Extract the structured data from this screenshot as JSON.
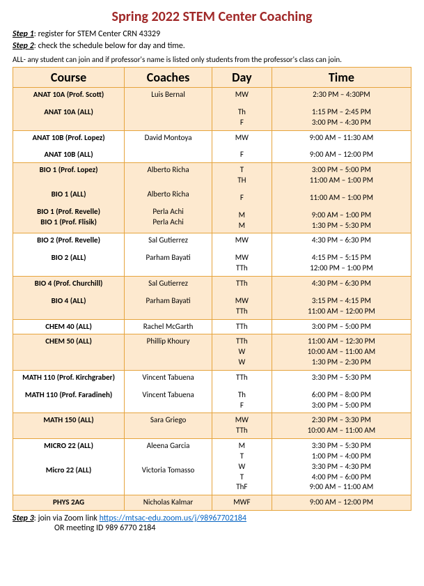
{
  "title": "Spring 2022 STEM Center Coaching",
  "steps": {
    "s1_label": "Step 1",
    "s1_text": ": register for STEM Center CRN 43329",
    "s2_label": "Step 2",
    "s2_text": ": check the schedule below for day and time.",
    "note": "ALL- any student can join and if professor's name is listed  only  students from the professor's class can join.",
    "s3_label": "Step 3",
    "s3_text_pre": ": join via Zoom link  ",
    "s3_link": "https://mtsac-edu.zoom.us/j/98967702184",
    "s3_or": "OR meeting ID 989 6770 2184"
  },
  "headers": {
    "course": "Course",
    "coaches": "Coaches",
    "day": "Day",
    "time": "Time"
  },
  "rows": [
    {
      "band": "a",
      "course": [
        "ANAT 10A (Prof. Scott)",
        "",
        "ANAT 10A  (ALL)"
      ],
      "coach": [
        "Luis Bernal"
      ],
      "day": [
        "MW",
        "",
        "Th",
        "F"
      ],
      "time": [
        "2:30 PM – 4:30PM",
        "",
        "1:15 PM – 2:45 PM",
        "3:00 PM – 4:30 PM"
      ]
    },
    {
      "band": "b",
      "course": [
        "ANAT 10B (Prof. Lopez)",
        "",
        "ANAT 10B (ALL)"
      ],
      "coach": [
        "David Montoya"
      ],
      "day": [
        "MW",
        "",
        "F"
      ],
      "time": [
        "9:00 AM – 11:30 AM",
        "",
        "9:00 AM – 12:00 PM"
      ]
    },
    {
      "band": "a",
      "course": [
        "BIO 1 (Prof. Lopez)",
        "",
        "",
        "BIO 1 (ALL)",
        "",
        "BIO 1 (Prof. Revelle)",
        "BIO 1 (Prof. Flisik)"
      ],
      "coach": [
        "Alberto Richa",
        "",
        "",
        "Alberto Richa",
        "",
        "Perla Achi",
        "Perla Achi"
      ],
      "day": [
        "T",
        "TH",
        "",
        "F",
        "",
        "M",
        "M"
      ],
      "time": [
        "3:00 PM – 5:00 PM",
        "11:00 AM – 1:00 PM",
        "",
        "11:00 AM – 1:00 PM",
        "",
        "9:00 AM – 1:00 PM",
        "1:30 PM – 5:30 PM"
      ]
    },
    {
      "band": "b",
      "course": [
        "BIO 2 (Prof. Revelle)",
        "",
        "BIO 2 (ALL)"
      ],
      "coach": [
        "Sal Gutierrez",
        "",
        "Parham Bayati"
      ],
      "day": [
        "MW",
        "",
        "MW",
        "TTh"
      ],
      "time": [
        "4:30 PM – 6:30 PM",
        "",
        "4:15 PM – 5:15 PM",
        "12:00 PM – 1:00 PM"
      ]
    },
    {
      "band": "a",
      "course": [
        "BIO 4 (Prof. Churchill)",
        "",
        "BIO 4 (ALL)"
      ],
      "coach": [
        "Sal Gutierrez",
        "",
        "Parham Bayati"
      ],
      "day": [
        "TTh",
        "",
        "MW",
        "TTh"
      ],
      "time": [
        "4:30 PM – 6:30 PM",
        "",
        "3:15 PM – 4:15 PM",
        "11:00 AM – 12:00 PM"
      ]
    },
    {
      "band": "b",
      "course": [
        "CHEM 40 (ALL)"
      ],
      "coach": [
        "Rachel McGarth"
      ],
      "day": [
        "TTh"
      ],
      "time": [
        "3:00 PM – 5:00 PM"
      ]
    },
    {
      "band": "a",
      "course": [
        "CHEM 50 (ALL)"
      ],
      "coach": [
        "Phillip Khoury"
      ],
      "day": [
        "TTh",
        "W",
        "W"
      ],
      "time": [
        "11:00 AM – 12:30 PM",
        "10:00 AM – 11:00 AM",
        "1:30 PM – 2:30 PM"
      ]
    },
    {
      "band": "b",
      "course": [
        "MATH 110 (Prof. Kirchgraber)",
        "",
        "MATH 110 (Prof. Faradineh)"
      ],
      "coach": [
        "Vincent Tabuena",
        "",
        "Vincent Tabuena"
      ],
      "day": [
        "TTh",
        "",
        "Th",
        "F"
      ],
      "time": [
        "3:30 PM – 5:30 PM",
        "",
        "6:00 PM – 8:00 PM",
        "3:00 PM – 5:00 PM"
      ]
    },
    {
      "band": "a",
      "course": [
        "MATH 150 (ALL)"
      ],
      "coach": [
        "Sara Griego"
      ],
      "day": [
        "MW",
        "TTh"
      ],
      "time": [
        "2:30 PM – 3:30 PM",
        "10:00 AM – 11:00 AM"
      ]
    },
    {
      "band": "b",
      "course": [
        "MICRO 22 (ALL)",
        "",
        "",
        "Micro 22 (ALL)"
      ],
      "coach": [
        "Aleena Garcia",
        "",
        "",
        "Victoria Tomasso"
      ],
      "day": [
        "M",
        "T",
        "W",
        "T",
        "ThF"
      ],
      "time": [
        "3:30 PM – 5:30 PM",
        "1:00 PM – 4:00 PM",
        "3:30 PM – 4:30 PM",
        "4:00 PM – 6:00 PM",
        "9:00 AM – 11:00 AM"
      ]
    },
    {
      "band": "a",
      "course": [
        "PHYS 2AG"
      ],
      "coach": [
        "Nicholas Kalmar"
      ],
      "day": [
        "MWF"
      ],
      "time": [
        "9:00 AM – 12:00 PM"
      ]
    }
  ]
}
